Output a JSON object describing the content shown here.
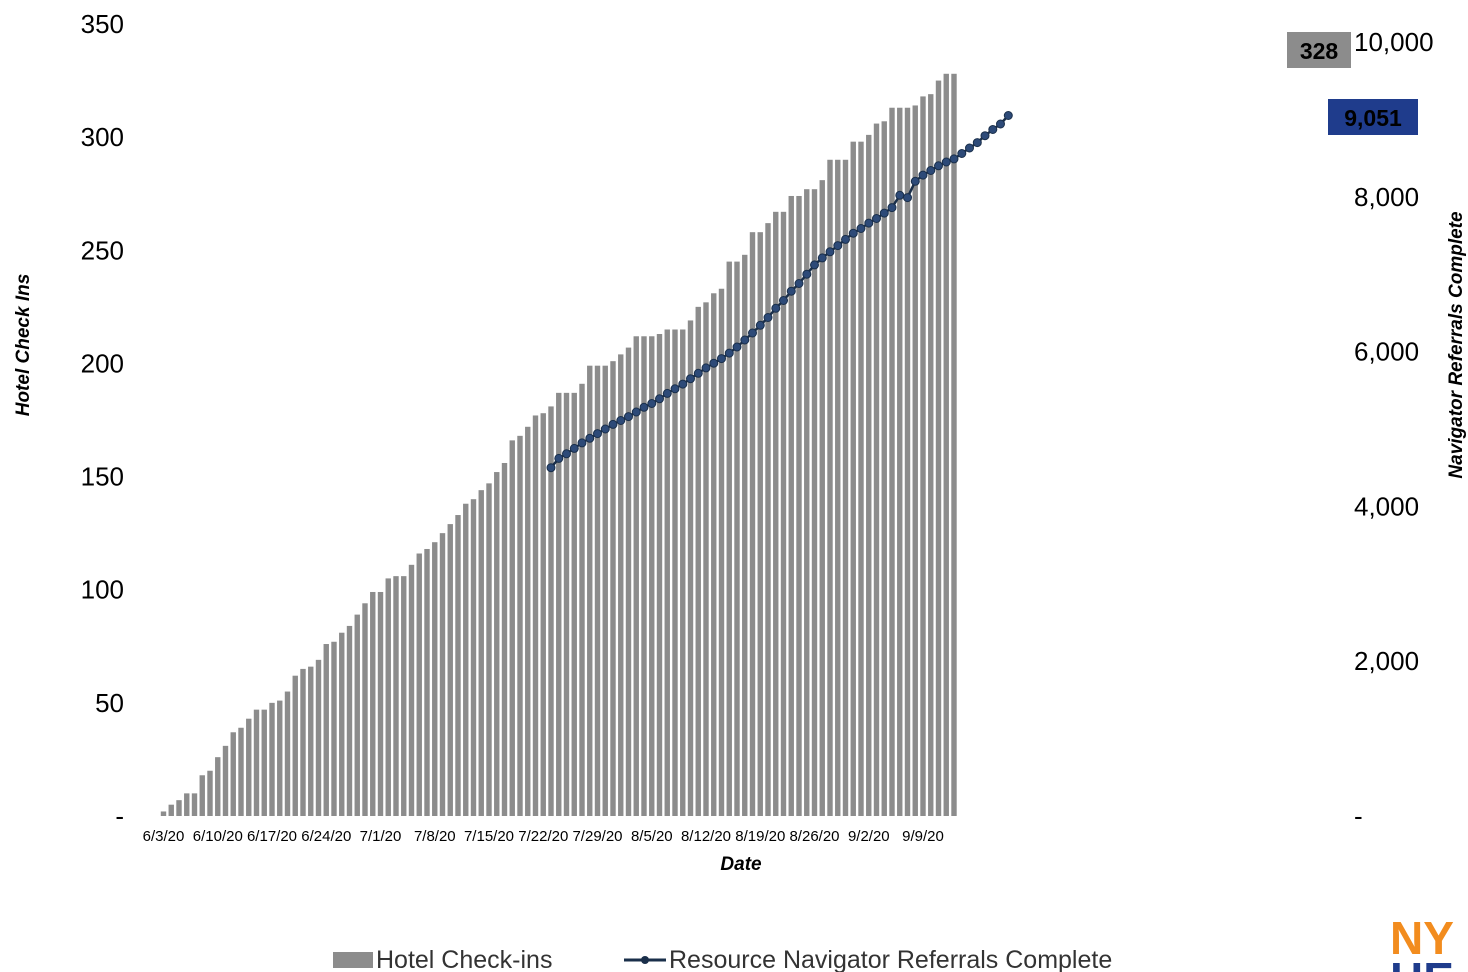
{
  "chart_data": {
    "type": "bar",
    "x_tick_labels": [
      "6/3/20",
      "6/10/20",
      "6/17/20",
      "6/24/20",
      "7/1/20",
      "7/8/20",
      "7/15/20",
      "7/22/20",
      "7/29/20",
      "8/5/20",
      "8/12/20",
      "8/19/20",
      "8/26/20",
      "9/2/20",
      "9/9/20"
    ],
    "xlabel": "Date",
    "ylabel_left": "Hotel Check Ins",
    "ylabel_right": "Navigator Referrals Complete",
    "ylim_left": [
      0,
      350
    ],
    "ylim_right": [
      0,
      10000
    ],
    "y_ticks_left": [
      "-",
      "50",
      "100",
      "150",
      "200",
      "250",
      "300",
      "350"
    ],
    "y_ticks_right": [
      "-",
      "2,000",
      "4,000",
      "6,000",
      "8,000",
      "10,000"
    ],
    "series": [
      {
        "name": "Hotel Check-ins",
        "type": "bar",
        "axis": "left",
        "color": "#8c8c8c",
        "start_date": "6/3/20",
        "values": [
          2,
          5,
          7,
          10,
          10,
          18,
          20,
          26,
          31,
          37,
          39,
          43,
          47,
          47,
          50,
          51,
          55,
          62,
          65,
          66,
          69,
          76,
          77,
          81,
          84,
          89,
          94,
          99,
          99,
          105,
          106,
          106,
          111,
          116,
          118,
          121,
          125,
          129,
          133,
          138,
          140,
          144,
          147,
          152,
          156,
          166,
          168,
          172,
          177,
          178,
          181,
          187,
          187,
          187,
          191,
          199,
          199,
          199,
          201,
          204,
          207,
          212,
          212,
          212,
          213,
          215,
          215,
          215,
          219,
          225,
          227,
          231,
          233,
          245,
          245,
          248,
          258,
          258,
          262,
          267,
          267,
          274,
          274,
          277,
          277,
          281,
          290,
          290,
          290,
          298,
          298,
          301,
          306,
          307,
          313,
          313,
          313,
          314,
          318,
          319,
          325,
          328,
          328
        ]
      },
      {
        "name": "Resource Navigator Referrals Complete",
        "type": "line",
        "axis": "right",
        "color": "#1a2f4a",
        "start_date": "7/23/20",
        "values": [
          4500,
          4620,
          4680,
          4750,
          4820,
          4880,
          4940,
          5000,
          5060,
          5110,
          5160,
          5220,
          5280,
          5330,
          5390,
          5460,
          5520,
          5580,
          5650,
          5720,
          5790,
          5850,
          5910,
          5980,
          6060,
          6150,
          6240,
          6340,
          6440,
          6560,
          6660,
          6780,
          6880,
          7000,
          7120,
          7210,
          7290,
          7370,
          7450,
          7530,
          7590,
          7660,
          7720,
          7790,
          7860,
          8020,
          7990,
          8200,
          8280,
          8340,
          8400,
          8450,
          8490,
          8560,
          8630,
          8700,
          8790,
          8870,
          8940,
          9051
        ]
      }
    ],
    "annotations": [
      {
        "series": "Hotel Check-ins",
        "text": "328",
        "color": "#8c8c8c"
      },
      {
        "series": "Resource Navigator Referrals Complete",
        "text": "9,051",
        "color": "#1f3c8c"
      }
    ],
    "legend": {
      "position": "bottom",
      "items": [
        "Hotel Check-ins",
        "Resource Navigator Referrals Complete"
      ]
    },
    "grid": false
  },
  "logo": {
    "line1": "NY",
    "line2": "HE",
    "color1": "#f28c1e",
    "color2": "#1f3c8c"
  }
}
